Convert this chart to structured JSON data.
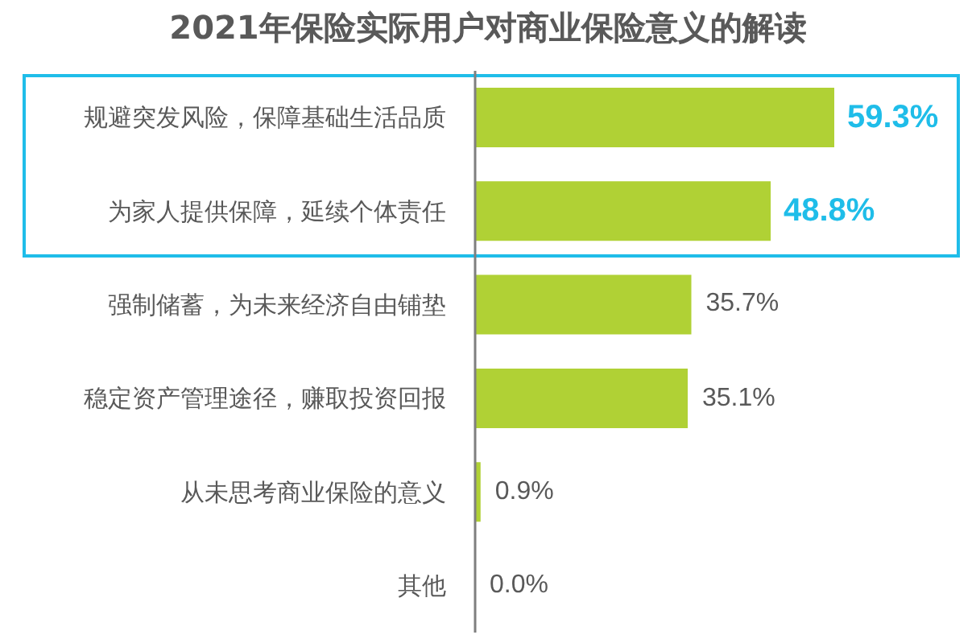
{
  "chart_data": {
    "type": "bar",
    "orientation": "horizontal",
    "title": "2021年保险实际用户对商业保险意义的解读",
    "categories": [
      "规避突发风险，保障基础生活品质",
      "为家人提供保障，延续个体责任",
      "强制储蓄，为未来经济自由铺垫",
      "稳定资产管理途径，赚取投资回报",
      "从未思考商业保险的意义",
      "其他"
    ],
    "values": [
      59.3,
      48.8,
      35.7,
      35.1,
      0.9,
      0.0
    ],
    "value_labels": [
      "59.3%",
      "48.8%",
      "35.7%",
      "35.1%",
      "0.9%",
      "0.0%"
    ],
    "color": "#b0d135",
    "grid": false,
    "legend": false
  }
}
